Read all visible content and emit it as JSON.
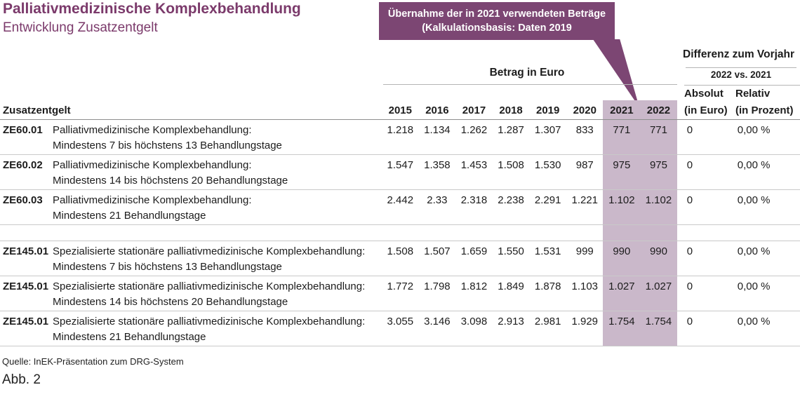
{
  "header": {
    "title": "Palliativmedizinische Komplexbehandlung",
    "subtitle": "Entwicklung Zusatzentgelt"
  },
  "callout": {
    "line1": "Übernahme der in 2021 verwendeten Beträge",
    "line2": "(Kalkulationsbasis: Daten 2019",
    "bg_color": "#7c4673"
  },
  "table": {
    "row_header_label": "Zusatzentgelt",
    "group_header": "Betrag in Euro",
    "diff_header": "Differenz zum Vorjahr",
    "diff_subheader": "2022 vs. 2021",
    "diff_col_absolut_line1": "Absolut",
    "diff_col_absolut_line2": "(in Euro)",
    "diff_col_relativ_line1": "Relativ",
    "diff_col_relativ_line2": "(in Prozent)",
    "years": [
      "2015",
      "2016",
      "2017",
      "2018",
      "2019",
      "2020",
      "2021",
      "2022"
    ],
    "highlight_years": [
      "2021",
      "2022"
    ],
    "highlight_color": "#cab8ca",
    "spacer_after_row": 3,
    "rows": [
      {
        "code": "ZE60.01",
        "desc1": "Palliativmedizinische Komplexbehandlung:",
        "desc2": "Mindestens 7 bis höchstens 13 Behandlungstage",
        "values": [
          "1.218",
          "1.134",
          "1.262",
          "1.287",
          "1.307",
          "833",
          "771",
          "771"
        ],
        "absolut": "0",
        "relativ": "0,00 %"
      },
      {
        "code": "ZE60.02",
        "desc1": "Palliativmedizinische Komplexbehandlung:",
        "desc2": "Mindestens 14 bis höchstens 20 Behandlungstage",
        "values": [
          "1.547",
          "1.358",
          "1.453",
          "1.508",
          "1.530",
          "987",
          "975",
          "975"
        ],
        "absolut": "0",
        "relativ": "0,00 %"
      },
      {
        "code": "ZE60.03",
        "desc1": "Palliativmedizinische Komplexbehandlung:",
        "desc2": "Mindestens 21 Behandlungstage",
        "values": [
          "2.442",
          "2.33",
          "2.318",
          "2.238",
          "2.291",
          "1.221",
          "1.102",
          "1.102"
        ],
        "absolut": "0",
        "relativ": "0,00 %"
      },
      {
        "code": "ZE145.01",
        "desc1": "Spezialisierte stationäre palliativmedizinische Komplexbehandlung:",
        "desc2": "Mindestens 7 bis höchstens 13 Behandlungstage",
        "values": [
          "1.508",
          "1.507",
          "1.659",
          "1.550",
          "1.531",
          "999",
          "990",
          "990"
        ],
        "absolut": "0",
        "relativ": "0,00 %"
      },
      {
        "code": "ZE145.01",
        "desc1": "Spezialisierte stationäre palliativmedizinische Komplexbehandlung:",
        "desc2": "Mindestens 14 bis höchstens 20 Behandlungstage",
        "values": [
          "1.772",
          "1.798",
          "1.812",
          "1.849",
          "1.878",
          "1.103",
          "1.027",
          "1.027"
        ],
        "absolut": "0",
        "relativ": "0,00 %"
      },
      {
        "code": "ZE145.01",
        "desc1": "Spezialisierte stationäre palliativmedizinische Komplexbehandlung:",
        "desc2": "Mindestens 21 Behandlungstage",
        "values": [
          "3.055",
          "3.146",
          "3.098",
          "2.913",
          "2.981",
          "1.929",
          "1.754",
          "1.754"
        ],
        "absolut": "0",
        "relativ": "0,00 %"
      }
    ]
  },
  "footer": {
    "source": "Quelle: InEK-Präsentation zum DRG-System",
    "figure_label": "Abb. 2"
  },
  "colors": {
    "accent_purple": "#7b3a6b",
    "callout_bg": "#7c4673",
    "column_highlight": "#cab8ca",
    "header_rule": "#8f8f8f",
    "row_rule": "#c9c9c9",
    "text": "#1c1c1c"
  }
}
